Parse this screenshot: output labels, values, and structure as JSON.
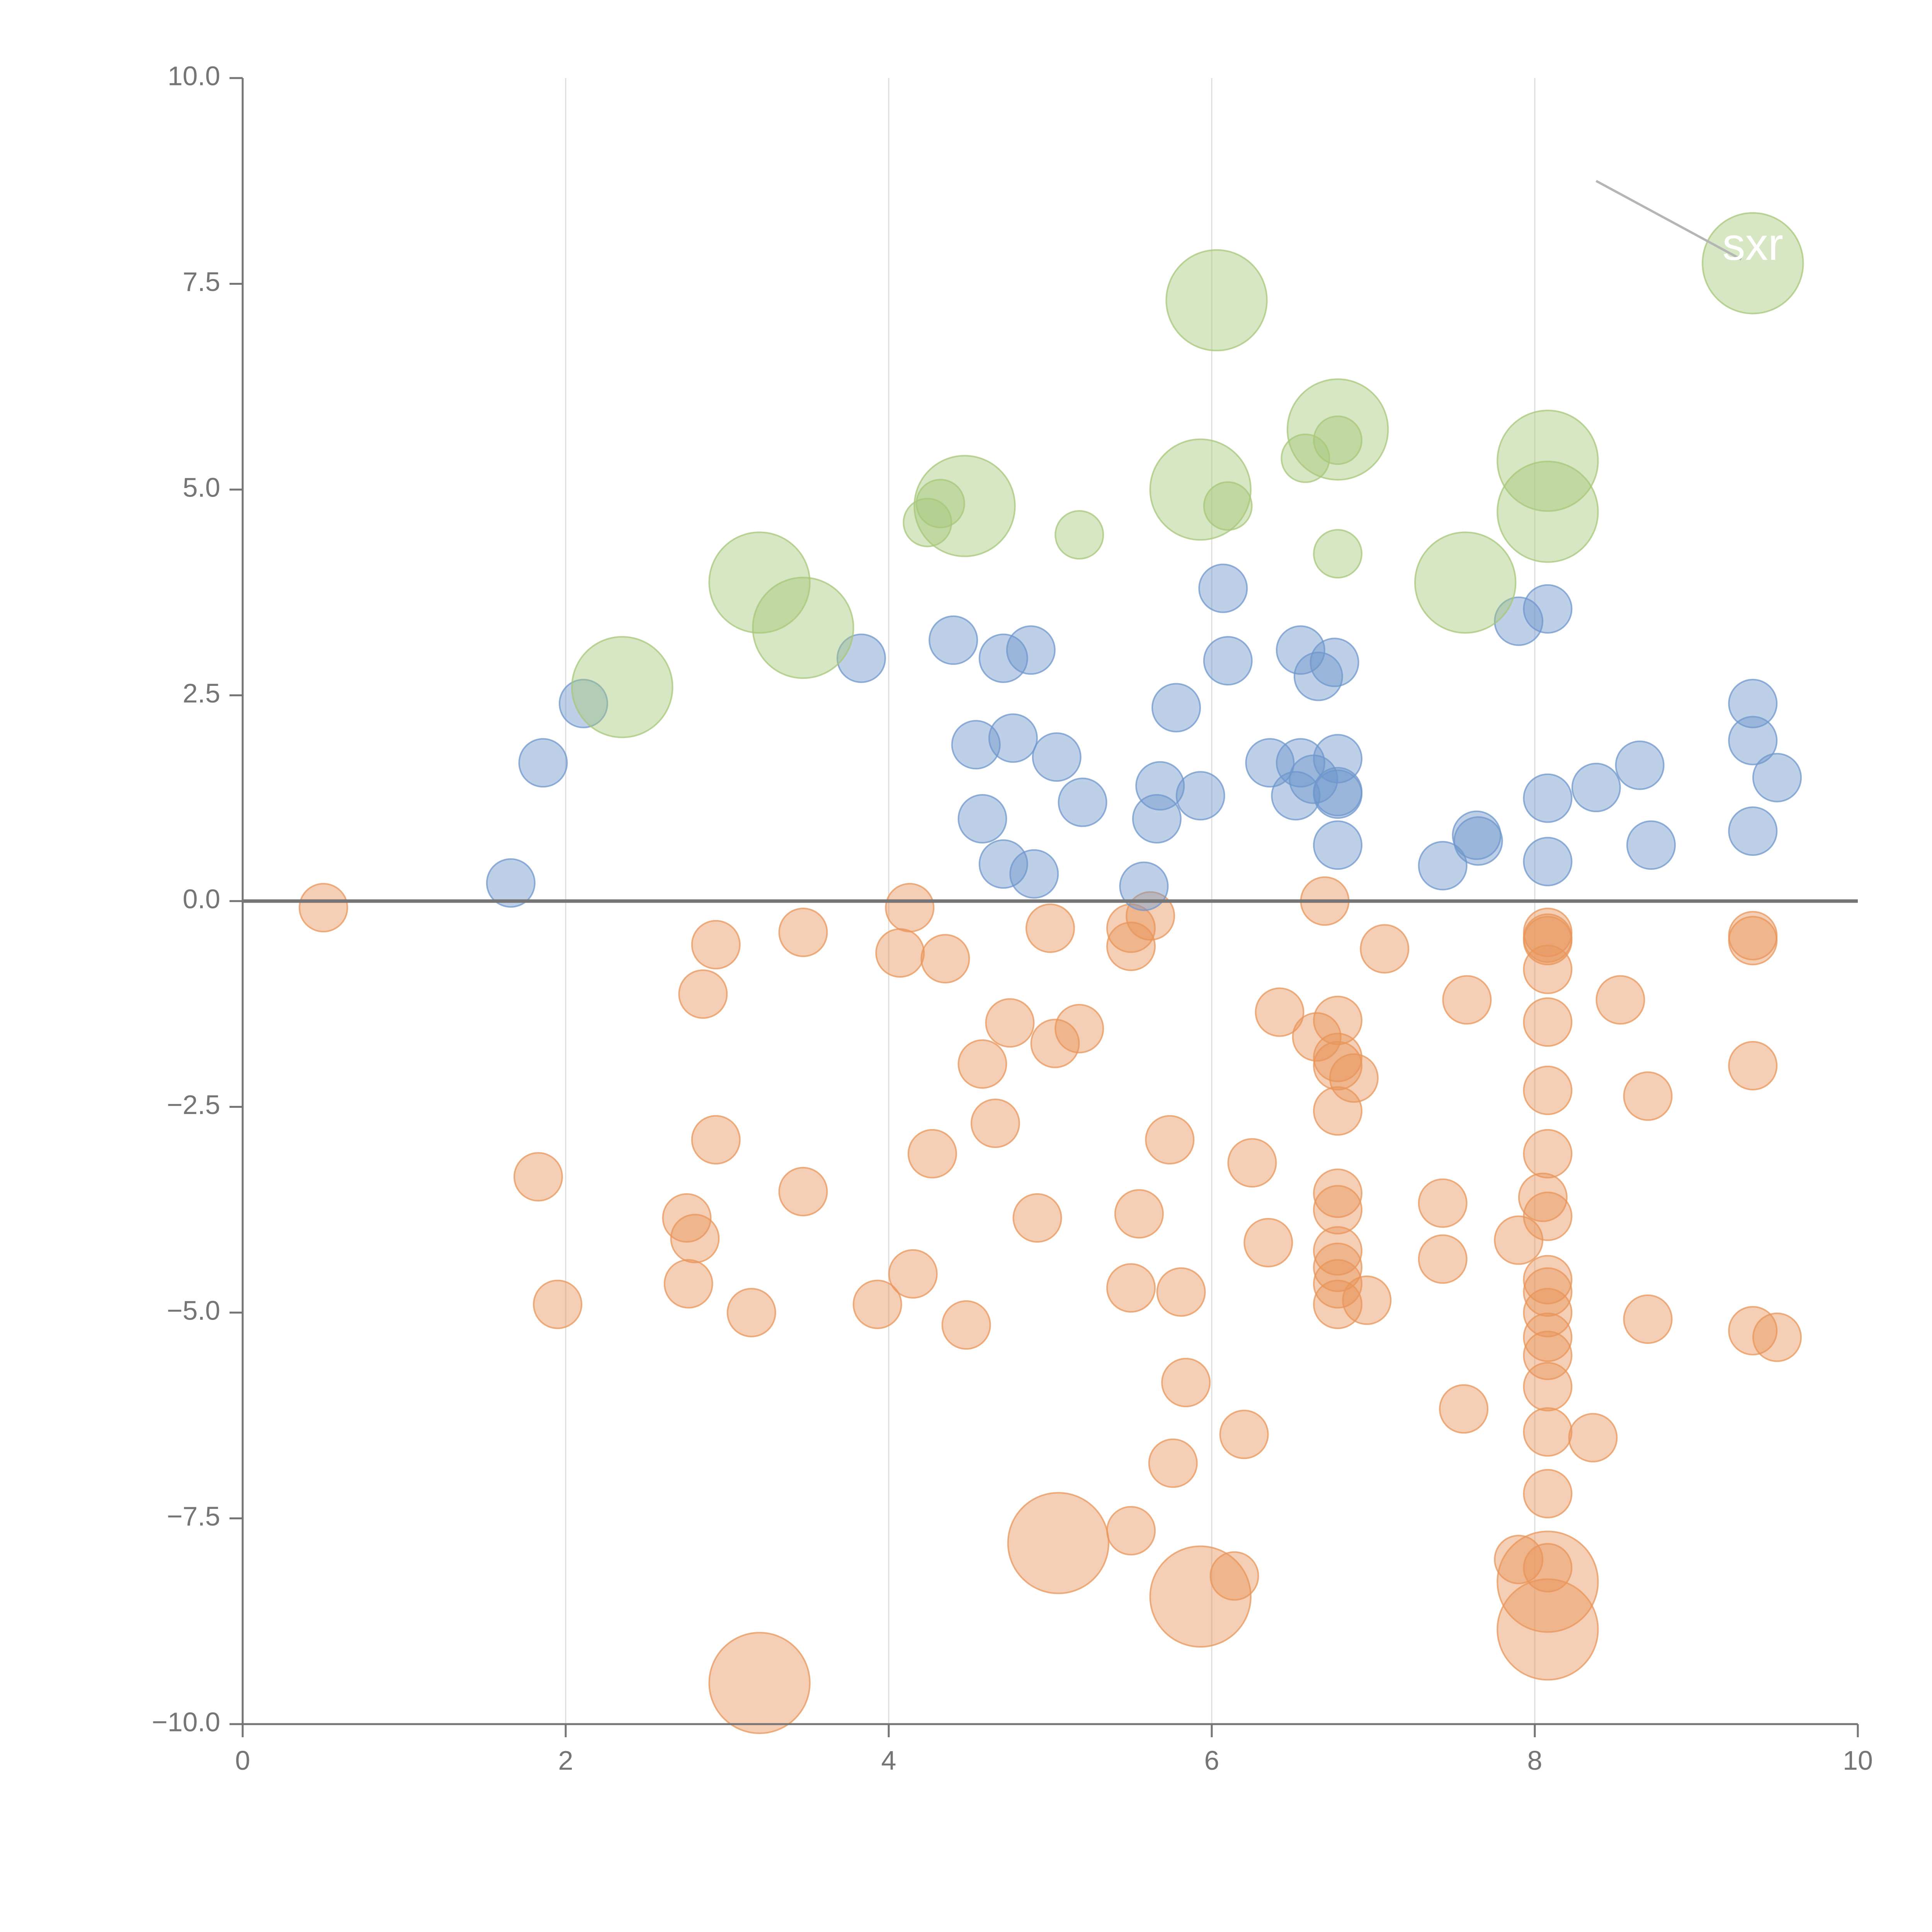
{
  "chart_data": {
    "type": "scatter",
    "title": "",
    "xlabel": "",
    "ylabel": "",
    "xlim": [
      0,
      10
    ],
    "ylim": [
      -10,
      10
    ],
    "grid": "vertical",
    "x_ticks": [
      {
        "value": 0,
        "label": "0"
      },
      {
        "value": 2,
        "label": "2"
      },
      {
        "value": 4,
        "label": "4"
      },
      {
        "value": 6,
        "label": "6"
      },
      {
        "value": 8,
        "label": "8"
      },
      {
        "value": 10,
        "label": "10"
      }
    ],
    "y_ticks": [
      {
        "value": 10,
        "label": "10.0"
      },
      {
        "value": 7.5,
        "label": "7.5"
      },
      {
        "value": 5,
        "label": "5.0"
      },
      {
        "value": 2.5,
        "label": "2.5"
      },
      {
        "value": 0,
        "label": "0.0"
      },
      {
        "value": -2.5,
        "label": "−2.5"
      },
      {
        "value": -5,
        "label": "−5.0"
      },
      {
        "value": -7.5,
        "label": "−7.5"
      },
      {
        "value": -10,
        "label": "−10.0"
      }
    ],
    "zero_line": 0,
    "annotation": {
      "text": "sxr",
      "x": 9.35,
      "y": 7.75,
      "leader_from": [
        8.38,
        8.75
      ]
    },
    "series": [
      {
        "name": "orange",
        "color": "#e8955a",
        "points": [
          [
            0.5,
            -0.08,
            1
          ],
          [
            1.83,
            -3.35,
            1
          ],
          [
            1.95,
            -4.9,
            1
          ],
          [
            2.75,
            -3.85,
            1
          ],
          [
            2.8,
            -4.1,
            1
          ],
          [
            2.76,
            -4.65,
            1
          ],
          [
            2.85,
            -1.13,
            1
          ],
          [
            2.93,
            -0.53,
            1
          ],
          [
            2.93,
            -2.9,
            1
          ],
          [
            3.15,
            -5.0,
            1
          ],
          [
            3.2,
            -9.5,
            2.1
          ],
          [
            3.47,
            -0.38,
            1
          ],
          [
            3.47,
            -3.53,
            1
          ],
          [
            3.93,
            -4.9,
            1
          ],
          [
            4.07,
            -0.63,
            1
          ],
          [
            4.13,
            -0.08,
            1
          ],
          [
            4.15,
            -4.53,
            1
          ],
          [
            4.27,
            -3.07,
            1
          ],
          [
            4.35,
            -0.7,
            1
          ],
          [
            4.48,
            -5.15,
            1
          ],
          [
            4.58,
            -1.98,
            1
          ],
          [
            4.66,
            -2.7,
            1
          ],
          [
            4.75,
            -1.48,
            1
          ],
          [
            4.92,
            -3.85,
            1
          ],
          [
            5.0,
            -0.33,
            1
          ],
          [
            5.03,
            -1.73,
            1
          ],
          [
            5.05,
            -7.8,
            2.1
          ],
          [
            5.18,
            -1.55,
            1
          ],
          [
            5.5,
            -0.33,
            1
          ],
          [
            5.5,
            -0.55,
            1
          ],
          [
            5.5,
            -4.7,
            1
          ],
          [
            5.5,
            -7.65,
            1
          ],
          [
            5.55,
            -3.8,
            1
          ],
          [
            5.62,
            -0.18,
            1
          ],
          [
            5.74,
            -2.9,
            1
          ],
          [
            5.76,
            -6.83,
            1
          ],
          [
            5.81,
            -4.75,
            1
          ],
          [
            5.84,
            -5.85,
            1
          ],
          [
            5.93,
            -8.45,
            2.1
          ],
          [
            6.14,
            -8.2,
            1
          ],
          [
            6.2,
            -6.48,
            1
          ],
          [
            6.25,
            -3.18,
            1
          ],
          [
            6.35,
            -4.15,
            1
          ],
          [
            6.42,
            -1.35,
            1
          ],
          [
            6.65,
            -1.65,
            1
          ],
          [
            6.7,
            0.0,
            1
          ],
          [
            6.78,
            -1.45,
            1
          ],
          [
            6.78,
            -1.9,
            1
          ],
          [
            6.78,
            -2.0,
            1
          ],
          [
            6.78,
            -2.55,
            1
          ],
          [
            6.78,
            -3.55,
            1
          ],
          [
            6.78,
            -3.75,
            1
          ],
          [
            6.78,
            -4.25,
            1
          ],
          [
            6.78,
            -4.45,
            1
          ],
          [
            6.78,
            -4.65,
            1
          ],
          [
            6.78,
            -4.9,
            1
          ],
          [
            6.88,
            -2.15,
            1
          ],
          [
            6.96,
            -4.85,
            1
          ],
          [
            7.07,
            -0.58,
            1
          ],
          [
            7.43,
            -3.67,
            1
          ],
          [
            7.43,
            -4.35,
            1
          ],
          [
            7.56,
            -6.17,
            1
          ],
          [
            7.58,
            -1.2,
            1
          ],
          [
            7.9,
            -4.12,
            1
          ],
          [
            7.9,
            -8.0,
            1
          ],
          [
            8.05,
            -3.6,
            1
          ],
          [
            8.08,
            -0.38,
            1
          ],
          [
            8.08,
            -0.45,
            1
          ],
          [
            8.08,
            -0.48,
            1
          ],
          [
            8.08,
            -0.83,
            1
          ],
          [
            8.08,
            -1.47,
            1
          ],
          [
            8.08,
            -2.3,
            1
          ],
          [
            8.08,
            -3.07,
            1
          ],
          [
            8.08,
            -3.83,
            1
          ],
          [
            8.08,
            -4.6,
            1
          ],
          [
            8.08,
            -4.75,
            1
          ],
          [
            8.08,
            -5.0,
            1
          ],
          [
            8.08,
            -5.3,
            1
          ],
          [
            8.08,
            -5.52,
            1
          ],
          [
            8.08,
            -5.9,
            1
          ],
          [
            8.08,
            -6.45,
            1
          ],
          [
            8.08,
            -7.2,
            1
          ],
          [
            8.08,
            -8.1,
            1
          ],
          [
            8.08,
            -8.27,
            2.1
          ],
          [
            8.08,
            -8.85,
            2.1
          ],
          [
            8.36,
            -6.52,
            1
          ],
          [
            8.53,
            -1.2,
            1
          ],
          [
            8.7,
            -2.37,
            1
          ],
          [
            8.7,
            -5.08,
            1
          ],
          [
            9.35,
            -0.42,
            1
          ],
          [
            9.35,
            -0.48,
            1
          ],
          [
            9.35,
            -2.0,
            1
          ],
          [
            9.35,
            -5.22,
            1
          ],
          [
            9.5,
            -5.3,
            1
          ]
        ]
      },
      {
        "name": "blue",
        "color": "#6f97cc",
        "points": [
          [
            1.66,
            0.22,
            1
          ],
          [
            1.86,
            1.68,
            1
          ],
          [
            2.11,
            2.4,
            1
          ],
          [
            3.83,
            2.95,
            1
          ],
          [
            4.4,
            3.17,
            1
          ],
          [
            4.54,
            1.9,
            1
          ],
          [
            4.58,
            1.0,
            1
          ],
          [
            4.71,
            0.45,
            1
          ],
          [
            4.71,
            2.95,
            1
          ],
          [
            4.77,
            1.98,
            1
          ],
          [
            4.88,
            3.05,
            1
          ],
          [
            4.9,
            0.33,
            1
          ],
          [
            5.04,
            1.75,
            1
          ],
          [
            5.2,
            1.2,
            1
          ],
          [
            5.58,
            0.18,
            1
          ],
          [
            5.66,
            1.0,
            1
          ],
          [
            5.68,
            1.4,
            1
          ],
          [
            5.78,
            2.35,
            1
          ],
          [
            5.93,
            1.28,
            1
          ],
          [
            6.07,
            3.8,
            1
          ],
          [
            6.1,
            2.92,
            1
          ],
          [
            6.36,
            1.68,
            1
          ],
          [
            6.52,
            1.28,
            1
          ],
          [
            6.55,
            3.05,
            1
          ],
          [
            6.55,
            1.68,
            1
          ],
          [
            6.63,
            1.48,
            1
          ],
          [
            6.66,
            2.73,
            1
          ],
          [
            6.76,
            2.9,
            1
          ],
          [
            6.78,
            1.73,
            1
          ],
          [
            6.78,
            1.33,
            1
          ],
          [
            6.78,
            1.3,
            1
          ],
          [
            6.78,
            0.68,
            1
          ],
          [
            7.43,
            0.43,
            1
          ],
          [
            7.64,
            0.8,
            1
          ],
          [
            7.65,
            0.73,
            1
          ],
          [
            7.9,
            3.4,
            1
          ],
          [
            8.08,
            3.55,
            1
          ],
          [
            8.08,
            1.25,
            1
          ],
          [
            8.08,
            0.48,
            1
          ],
          [
            8.38,
            1.38,
            1
          ],
          [
            8.65,
            1.65,
            1
          ],
          [
            8.72,
            0.68,
            1
          ],
          [
            9.35,
            2.4,
            1
          ],
          [
            9.35,
            1.95,
            1
          ],
          [
            9.35,
            0.85,
            1
          ],
          [
            9.5,
            1.5,
            1
          ]
        ]
      },
      {
        "name": "green",
        "color": "#a7c77a",
        "points": [
          [
            2.35,
            2.6,
            2.1
          ],
          [
            3.2,
            3.87,
            2.1
          ],
          [
            3.47,
            3.32,
            2.1
          ],
          [
            4.24,
            4.6,
            1
          ],
          [
            4.32,
            4.83,
            1
          ],
          [
            4.47,
            4.8,
            2.1
          ],
          [
            5.18,
            4.45,
            1
          ],
          [
            5.93,
            5.0,
            2.1
          ],
          [
            6.03,
            7.3,
            2.1
          ],
          [
            6.1,
            4.8,
            1
          ],
          [
            6.58,
            5.38,
            1
          ],
          [
            6.78,
            5.73,
            2.1
          ],
          [
            6.78,
            5.6,
            1
          ],
          [
            6.78,
            4.22,
            1
          ],
          [
            7.57,
            3.87,
            2.1
          ],
          [
            8.08,
            5.35,
            2.1
          ],
          [
            8.08,
            4.73,
            2.1
          ],
          [
            9.35,
            7.75,
            2.1
          ]
        ]
      }
    ]
  }
}
